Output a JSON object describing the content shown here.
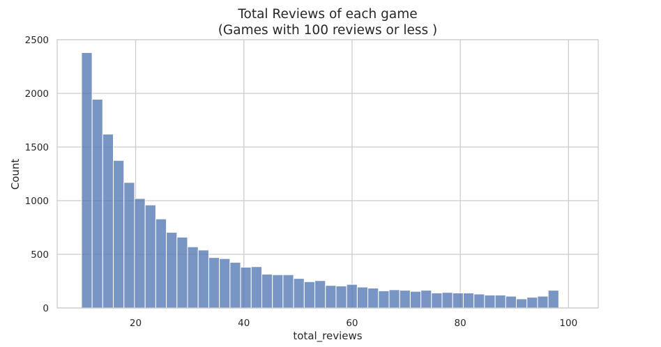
{
  "chart_data": {
    "type": "bar",
    "title": "Total Reviews of each game",
    "subtitle": "(Games with 100 reviews or less )",
    "xlabel": "total_reviews",
    "ylabel": "Count",
    "xlim": [
      5.5,
      105.5
    ],
    "ylim": [
      0,
      2500
    ],
    "x_ticks": [
      20,
      40,
      60,
      80,
      100
    ],
    "y_ticks": [
      0,
      500,
      1000,
      1500,
      2000,
      2500
    ],
    "grid": true,
    "bar_color": "#4c72b0",
    "bin_start": 10,
    "bin_width": 1.96,
    "values": [
      2380,
      1945,
      1620,
      1375,
      1170,
      1020,
      960,
      830,
      705,
      660,
      570,
      540,
      470,
      460,
      425,
      380,
      385,
      315,
      310,
      310,
      275,
      245,
      255,
      210,
      205,
      220,
      195,
      185,
      160,
      170,
      165,
      155,
      165,
      140,
      145,
      140,
      140,
      130,
      120,
      120,
      110,
      85,
      100,
      110,
      165
    ]
  }
}
